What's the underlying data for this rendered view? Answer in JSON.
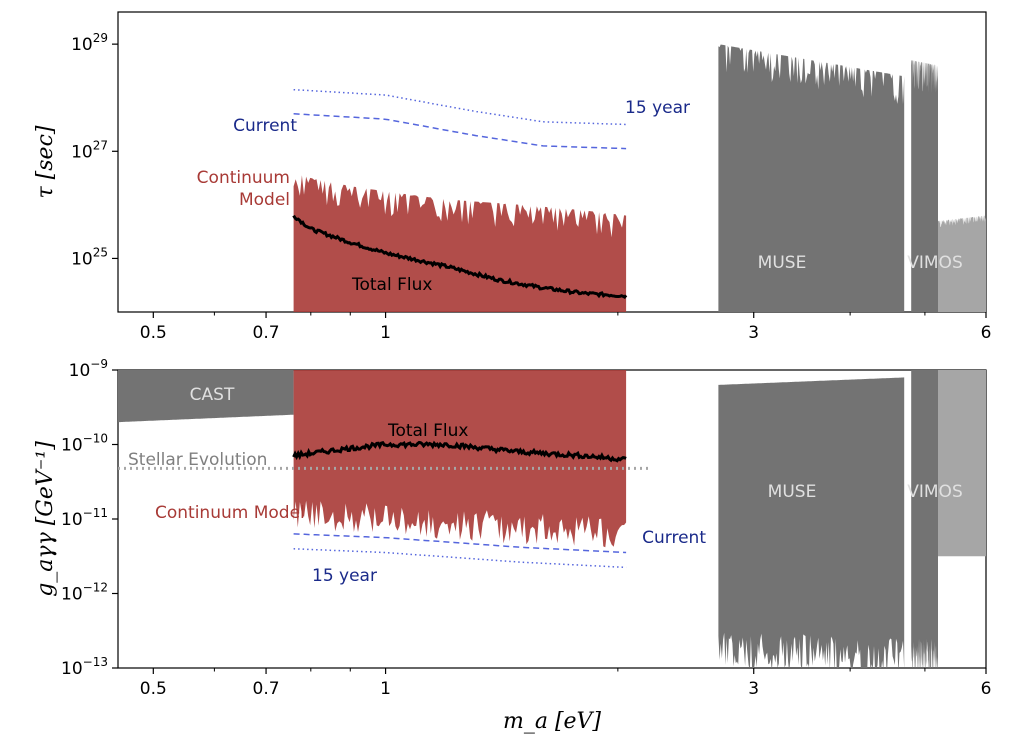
{
  "chart_data": [
    {
      "type": "area",
      "panel": "top",
      "ylabel": "τ [sec]",
      "xlabel": "",
      "xscale": "log",
      "yscale": "log",
      "xlim": [
        0.45,
        6.0
      ],
      "ylim_exp": [
        24.0,
        29.6
      ],
      "x_ticks": [
        0.5,
        0.7,
        1,
        3,
        6
      ],
      "x_tick_labels": [
        "0.5",
        "0.7",
        "1",
        "3",
        "6"
      ],
      "y_ticks_exp": [
        25,
        27,
        29
      ],
      "y_tick_labels": [
        "25",
        "27",
        "29"
      ],
      "y_tick_base": "10",
      "series": [
        {
          "name": "Continuum Model",
          "kind": "band",
          "color": "#a83a36",
          "x": [
            0.76,
            0.8,
            0.9,
            1.0,
            1.2,
            1.5,
            1.8,
            2.05
          ],
          "y_low_exp": [
            24.0,
            24.0,
            24.0,
            24.0,
            24.0,
            24.0,
            24.0,
            24.0
          ],
          "y_high_exp": [
            26.6,
            26.5,
            26.35,
            26.25,
            26.1,
            26.0,
            25.9,
            25.8
          ]
        },
        {
          "name": "Total Flux",
          "kind": "line",
          "color": "#000000",
          "x": [
            0.76,
            0.8,
            0.9,
            1.0,
            1.2,
            1.4,
            1.6,
            1.8,
            2.05
          ],
          "y_exp": [
            25.8,
            25.55,
            25.3,
            25.1,
            24.85,
            24.6,
            24.45,
            24.35,
            24.3
          ]
        },
        {
          "name": "Current",
          "kind": "line",
          "style": "dashed",
          "color": "#5566dd",
          "x": [
            0.76,
            1.0,
            1.3,
            1.6,
            2.05
          ],
          "y_exp": [
            27.7,
            27.6,
            27.3,
            27.1,
            27.05
          ]
        },
        {
          "name": "15 year",
          "kind": "line",
          "style": "dotted",
          "color": "#5566dd",
          "x": [
            0.76,
            1.0,
            1.3,
            1.6,
            2.05
          ],
          "y_exp": [
            28.15,
            28.05,
            27.75,
            27.55,
            27.5
          ]
        },
        {
          "name": "MUSE",
          "kind": "band",
          "color": "#737373",
          "x": [
            2.7,
            4.7
          ],
          "y_low_exp": [
            24.0,
            24.0
          ],
          "y_high_exp": [
            29.0,
            28.4
          ]
        },
        {
          "name": "",
          "kind": "band",
          "color": "#737373",
          "x": [
            4.8,
            5.2
          ],
          "y_low_exp": [
            24.0,
            24.0
          ],
          "y_high_exp": [
            28.7,
            28.6
          ]
        },
        {
          "name": "VIMOS",
          "kind": "band",
          "color": "#a6a6a6",
          "x": [
            5.2,
            6.0
          ],
          "y_low_exp": [
            24.0,
            24.0
          ],
          "y_high_exp": [
            25.7,
            25.8
          ]
        }
      ],
      "annotations": [
        {
          "text": "Current",
          "color": "#1a2a8a"
        },
        {
          "text": "15 year",
          "color": "#1a2a8a"
        },
        {
          "text": "Continuum",
          "color": "#a83a36"
        },
        {
          "text": "Model",
          "color": "#a83a36"
        },
        {
          "text": "Total Flux",
          "color": "#000000"
        },
        {
          "text": "MUSE",
          "color": "#e0e0e0"
        },
        {
          "text": "VIMOS",
          "color": "#e0e0e0"
        }
      ]
    },
    {
      "type": "area",
      "panel": "bottom",
      "ylabel": "g_aγγ [GeV⁻¹]",
      "xlabel": "m_a [eV]",
      "xscale": "log",
      "yscale": "log",
      "xlim": [
        0.45,
        6.0
      ],
      "ylim_exp": [
        -13,
        -9
      ],
      "x_ticks": [
        0.5,
        0.7,
        1,
        3,
        6
      ],
      "x_tick_labels": [
        "0.5",
        "0.7",
        "1",
        "3",
        "6"
      ],
      "y_ticks_exp": [
        -13,
        -12,
        -11,
        -10,
        -9
      ],
      "y_tick_labels": [
        "−13",
        "−12",
        "−11",
        "−10",
        "−9"
      ],
      "y_tick_base": "10",
      "series": [
        {
          "name": "CAST",
          "kind": "band",
          "color": "#737373",
          "x": [
            0.45,
            0.76
          ],
          "y_low_exp": [
            -9.7,
            -9.6
          ],
          "y_high_exp": [
            -9.0,
            -9.0
          ]
        },
        {
          "name": "Continuum Model",
          "kind": "band",
          "color": "#a83a36",
          "x": [
            0.76,
            1.0,
            1.5,
            2.05
          ],
          "y_low_exp": [
            -10.7,
            -10.8,
            -10.9,
            -10.95
          ],
          "y_high_exp": [
            -9.0,
            -9.0,
            -9.0,
            -9.0
          ]
        },
        {
          "name": "Total Flux",
          "kind": "line",
          "color": "#000000",
          "x": [
            0.76,
            0.9,
            1.0,
            1.2,
            1.5,
            1.8,
            2.05
          ],
          "y_exp": [
            -10.15,
            -10.05,
            -10.0,
            -10.0,
            -10.1,
            -10.15,
            -10.2
          ]
        },
        {
          "name": "Stellar Evolution",
          "kind": "hline",
          "style": "dotted",
          "color": "#a6a6a6",
          "y_exp": -10.32
        },
        {
          "name": "Current",
          "kind": "line",
          "style": "dashed",
          "color": "#5566dd",
          "x": [
            0.76,
            1.0,
            1.5,
            2.05
          ],
          "y_exp": [
            -11.2,
            -11.25,
            -11.38,
            -11.45
          ]
        },
        {
          "name": "15 year",
          "kind": "line",
          "style": "dotted",
          "color": "#5566dd",
          "x": [
            0.76,
            1.0,
            1.5,
            2.05
          ],
          "y_exp": [
            -11.4,
            -11.45,
            -11.58,
            -11.65
          ]
        },
        {
          "name": "MUSE",
          "kind": "band",
          "color": "#737373",
          "x": [
            2.7,
            4.7
          ],
          "y_low_exp": [
            -12.5,
            -12.6
          ],
          "y_high_exp": [
            -9.2,
            -9.1
          ]
        },
        {
          "name": "",
          "kind": "band",
          "color": "#737373",
          "x": [
            4.8,
            5.2
          ],
          "y_low_exp": [
            -12.6,
            -12.6
          ],
          "y_high_exp": [
            -9.0,
            -9.0
          ]
        },
        {
          "name": "VIMOS",
          "kind": "band",
          "color": "#a6a6a6",
          "x": [
            5.2,
            6.0
          ],
          "y_low_exp": [
            -11.5,
            -11.5
          ],
          "y_high_exp": [
            -9.0,
            -9.0
          ]
        }
      ],
      "annotations": [
        {
          "text": "CAST",
          "color": "#e0e0e0"
        },
        {
          "text": "Total Flux",
          "color": "#000000"
        },
        {
          "text": "Stellar Evolution",
          "color": "#7f7f7f"
        },
        {
          "text": "Continuum Model",
          "color": "#a83a36"
        },
        {
          "text": "Current",
          "color": "#1a2a8a"
        },
        {
          "text": "15 year",
          "color": "#1a2a8a"
        },
        {
          "text": "MUSE",
          "color": "#e0e0e0"
        },
        {
          "text": "VIMOS",
          "color": "#e0e0e0"
        }
      ]
    }
  ]
}
